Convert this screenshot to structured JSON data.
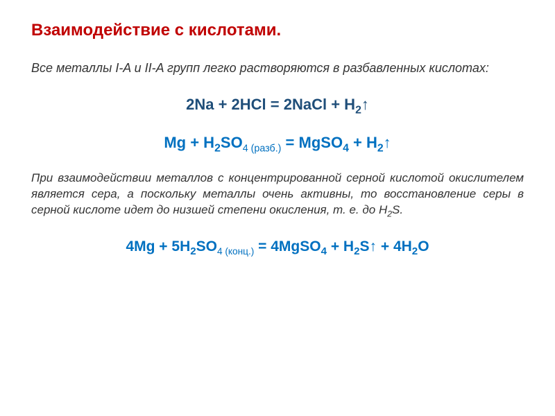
{
  "title": "Взаимодействие с кислотами.",
  "intro_pre": "Все металлы I-A и II-A групп легко растворяются в разбавленных кислотах:",
  "eq1": {
    "part1": "2Na + 2HCl = 2NaCl + H",
    "sub1": "2",
    "arrow": "↑"
  },
  "eq2": {
    "p1": "Mg + H",
    "s1": "2",
    "p2": "SO",
    "s2": "4 (разб.)",
    "p3": " = MgSO",
    "s3": "4",
    "p4": " + H",
    "s4": "2",
    "arrow": "↑"
  },
  "desc": "При взаимодействии металлов с концентрированной серной кислотой окислителем является сера, а поскольку металлы очень активны, то восстановление серы в серной кислоте идет до низшей степени окисления, т. е. до H",
  "desc_sub": "2",
  "desc_end": "S.",
  "eq3": {
    "p1": "4Mg + 5H",
    "s1": "2",
    "p2": "SO",
    "s2": "4 (конц.)",
    "p3": " = 4MgSO",
    "s3": "4",
    "p4": " + H",
    "s4": "2",
    "p5": "S↑ + 4H",
    "s5": "2",
    "p6": "O"
  },
  "colors": {
    "title": "#c00000",
    "eq1": "#1f4e79",
    "eq2": "#0070c0",
    "eq3": "#0070c0",
    "body": "#333333",
    "background": "#ffffff"
  }
}
